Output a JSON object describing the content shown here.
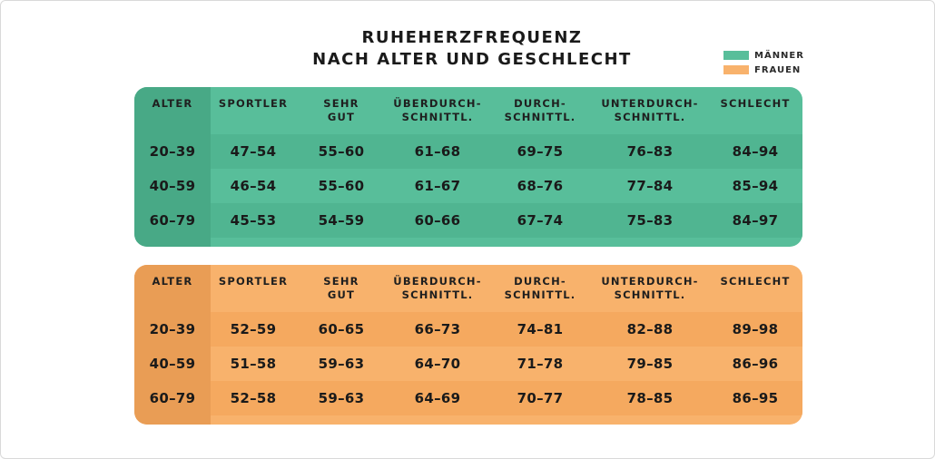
{
  "title": {
    "line1": "RUHEHERZFREQUENZ",
    "line2": "NACH ALTER UND GESCHLECHT"
  },
  "legend": {
    "men": {
      "label": "MÄNNER",
      "color": "#58be9a"
    },
    "women": {
      "label": "FRAUEN",
      "color": "#f8b26c"
    }
  },
  "men_table": {
    "headers": [
      {
        "l1": "ALTER",
        "l2": ""
      },
      {
        "l1": "SPORTLER",
        "l2": ""
      },
      {
        "l1": "SEHR",
        "l2": "GUT"
      },
      {
        "l1": "ÜBERDURCH-",
        "l2": "SCHNITTL."
      },
      {
        "l1": "DURCH-",
        "l2": "SCHNITTL."
      },
      {
        "l1": "UNTERDURCH-",
        "l2": "SCHNITTL."
      },
      {
        "l1": "SCHLECHT",
        "l2": ""
      }
    ],
    "rows": [
      [
        "20–39",
        "47–54",
        "55–60",
        "61–68",
        "69–75",
        "76–83",
        "84–94"
      ],
      [
        "40–59",
        "46–54",
        "55–60",
        "61–67",
        "68–76",
        "77–84",
        "85–94"
      ],
      [
        "60–79",
        "45–53",
        "54–59",
        "60–66",
        "67–74",
        "75–83",
        "84–97"
      ]
    ]
  },
  "women_table": {
    "headers": [
      {
        "l1": "ALTER",
        "l2": ""
      },
      {
        "l1": "SPORTLER",
        "l2": ""
      },
      {
        "l1": "SEHR",
        "l2": "GUT"
      },
      {
        "l1": "ÜBERDURCH-",
        "l2": "SCHNITTL."
      },
      {
        "l1": "DURCH-",
        "l2": "SCHNITTL."
      },
      {
        "l1": "UNTERDURCH-",
        "l2": "SCHNITTL."
      },
      {
        "l1": "SCHLECHT",
        "l2": ""
      }
    ],
    "rows": [
      [
        "20–39",
        "52–59",
        "60–65",
        "66–73",
        "74–81",
        "82–88",
        "89–98"
      ],
      [
        "40–59",
        "51–58",
        "59–63",
        "64–70",
        "71–78",
        "79–85",
        "86–96"
      ],
      [
        "60–79",
        "52–58",
        "59–63",
        "64–69",
        "70–77",
        "78–85",
        "86–95"
      ]
    ]
  }
}
